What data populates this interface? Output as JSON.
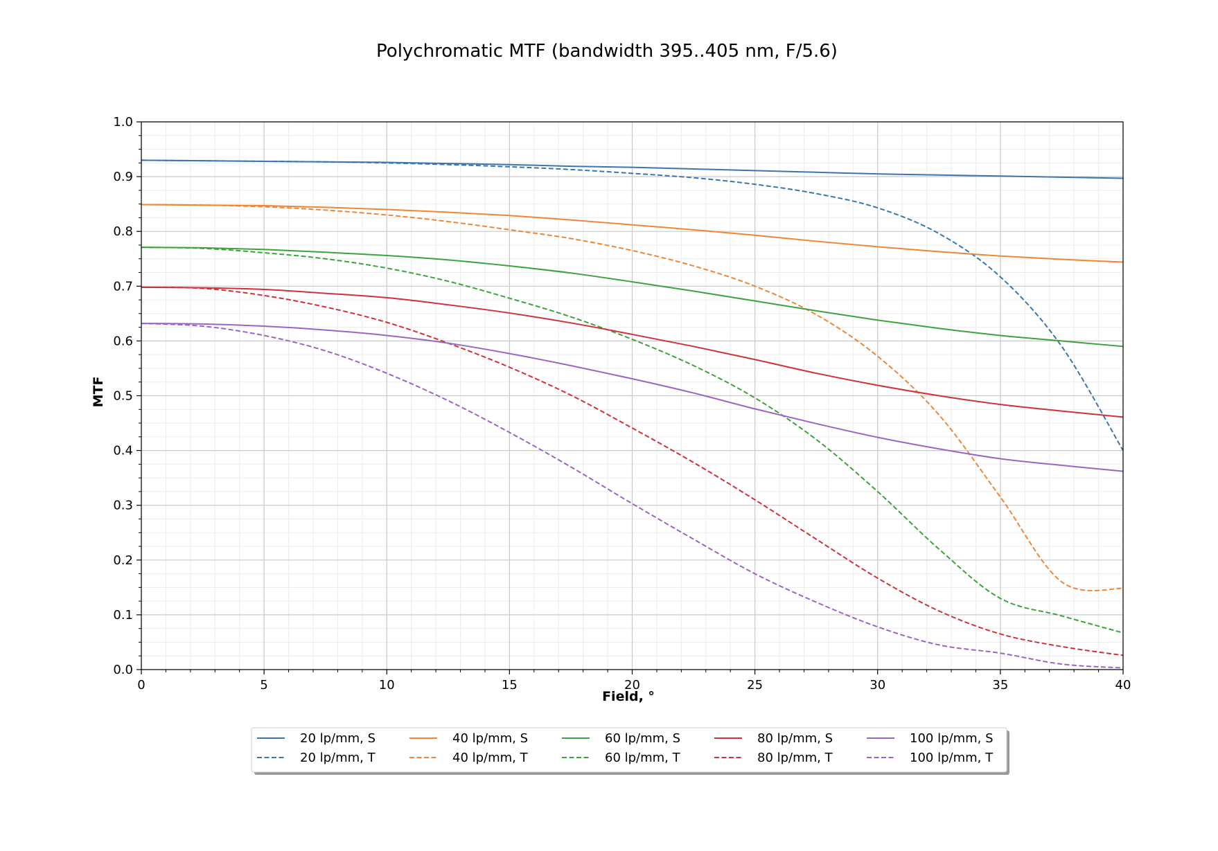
{
  "chart_data": {
    "type": "line",
    "title": "Polychromatic MTF (bandwidth 395..405 nm, F/5.6)",
    "xlabel": "Field, °",
    "ylabel": "MTF",
    "xlim": [
      0,
      40
    ],
    "ylim": [
      0,
      1.0
    ],
    "x_ticks": [
      "0",
      "5",
      "10",
      "15",
      "20",
      "25",
      "30",
      "35",
      "40"
    ],
    "y_ticks": [
      "0.0",
      "0.1",
      "0.2",
      "0.3",
      "0.4",
      "0.5",
      "0.6",
      "0.7",
      "0.8",
      "0.9",
      "1.0"
    ],
    "grid": true,
    "minor_grid": true,
    "legend_position": "bottom-center",
    "legend_columns": 5,
    "x": [
      0,
      2.5,
      5,
      7.5,
      10,
      12.5,
      15,
      17.5,
      20,
      22.5,
      25,
      27.5,
      30,
      32.5,
      35,
      37.5,
      40
    ],
    "series": [
      {
        "name": "20 lp/mm, S",
        "color": "#3a75b0",
        "dash": "solid",
        "values": [
          0.93,
          0.929,
          0.928,
          0.927,
          0.926,
          0.924,
          0.922,
          0.919,
          0.917,
          0.914,
          0.911,
          0.908,
          0.905,
          0.903,
          0.901,
          0.899,
          0.897
        ]
      },
      {
        "name": "20 lp/mm, T",
        "color": "#3a75b0",
        "dash": "dashed",
        "values": [
          0.93,
          0.929,
          0.928,
          0.927,
          0.925,
          0.922,
          0.918,
          0.913,
          0.906,
          0.898,
          0.886,
          0.869,
          0.843,
          0.796,
          0.717,
          0.59,
          0.4
        ]
      },
      {
        "name": "40 lp/mm, S",
        "color": "#ef8636",
        "dash": "solid",
        "values": [
          0.849,
          0.848,
          0.847,
          0.844,
          0.84,
          0.835,
          0.829,
          0.821,
          0.812,
          0.803,
          0.793,
          0.782,
          0.772,
          0.763,
          0.755,
          0.749,
          0.744
        ]
      },
      {
        "name": "40 lp/mm, T",
        "color": "#ef8636",
        "dash": "dashed",
        "values": [
          0.849,
          0.848,
          0.845,
          0.839,
          0.83,
          0.818,
          0.803,
          0.787,
          0.765,
          0.737,
          0.7,
          0.648,
          0.572,
          0.465,
          0.315,
          0.16,
          0.148
        ]
      },
      {
        "name": "60 lp/mm, S",
        "color": "#3ba33b",
        "dash": "solid",
        "values": [
          0.771,
          0.77,
          0.767,
          0.762,
          0.756,
          0.748,
          0.737,
          0.724,
          0.708,
          0.691,
          0.673,
          0.655,
          0.638,
          0.623,
          0.61,
          0.6,
          0.59
        ]
      },
      {
        "name": "60 lp/mm, T",
        "color": "#3ba33b",
        "dash": "dashed",
        "values": [
          0.771,
          0.769,
          0.761,
          0.75,
          0.733,
          0.709,
          0.678,
          0.644,
          0.603,
          0.555,
          0.496,
          0.42,
          0.325,
          0.22,
          0.13,
          0.098,
          0.067
        ]
      },
      {
        "name": "80 lp/mm, S",
        "color": "#d0303a",
        "dash": "solid",
        "values": [
          0.698,
          0.697,
          0.694,
          0.687,
          0.679,
          0.666,
          0.651,
          0.633,
          0.612,
          0.59,
          0.566,
          0.541,
          0.519,
          0.5,
          0.484,
          0.472,
          0.461
        ]
      },
      {
        "name": "80 lp/mm, T",
        "color": "#d0303a",
        "dash": "dashed",
        "values": [
          0.698,
          0.696,
          0.683,
          0.662,
          0.634,
          0.596,
          0.552,
          0.501,
          0.441,
          0.378,
          0.31,
          0.238,
          0.167,
          0.107,
          0.065,
          0.042,
          0.026
        ]
      },
      {
        "name": "100 lp/mm, S",
        "color": "#9a64c4",
        "dash": "solid",
        "values": [
          0.632,
          0.631,
          0.627,
          0.62,
          0.61,
          0.596,
          0.577,
          0.555,
          0.531,
          0.505,
          0.476,
          0.449,
          0.424,
          0.403,
          0.385,
          0.373,
          0.362
        ]
      },
      {
        "name": "100 lp/mm, T",
        "color": "#9a64c4",
        "dash": "dashed",
        "values": [
          0.632,
          0.627,
          0.61,
          0.582,
          0.541,
          0.491,
          0.433,
          0.37,
          0.303,
          0.238,
          0.175,
          0.123,
          0.078,
          0.045,
          0.03,
          0.01,
          0.003
        ]
      }
    ]
  }
}
